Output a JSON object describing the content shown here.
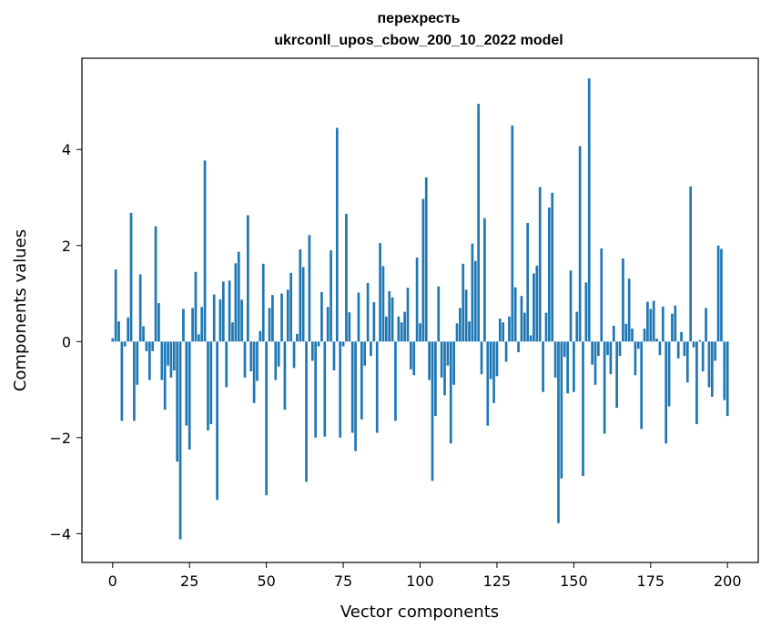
{
  "chart_data": {
    "type": "bar",
    "title_line1": "перехресть",
    "title_line2": "ukrconll_upos_cbow_200_10_2022 model",
    "xlabel": "Vector components",
    "ylabel": "Components values",
    "xlim": [
      -10,
      210
    ],
    "ylim": [
      -4.6,
      5.9
    ],
    "xticks": [
      0,
      25,
      50,
      75,
      100,
      125,
      150,
      175,
      200
    ],
    "yticks": [
      -4,
      -2,
      0,
      2,
      4
    ],
    "ytick_labels": [
      "−4",
      "−2",
      "0",
      "2",
      "4"
    ],
    "bar_color": "#1f77b4",
    "values": [
      0.07,
      1.5,
      0.42,
      -1.65,
      -0.1,
      0.5,
      2.68,
      -1.65,
      -0.9,
      1.4,
      0.32,
      -0.2,
      -0.8,
      -0.2,
      2.4,
      0.8,
      -0.8,
      -1.42,
      -0.5,
      -0.75,
      -0.6,
      -2.5,
      -4.12,
      0.68,
      -1.75,
      -2.25,
      0.7,
      1.45,
      0.15,
      0.72,
      3.77,
      -1.85,
      -1.72,
      0.98,
      -3.3,
      0.88,
      1.25,
      -0.95,
      1.27,
      0.4,
      1.63,
      1.87,
      0.87,
      -0.75,
      2.63,
      -0.62,
      -1.28,
      -0.82,
      0.22,
      1.62,
      -3.2,
      0.7,
      0.97,
      -0.8,
      -0.52,
      1.0,
      -1.42,
      1.08,
      1.43,
      -0.55,
      0.16,
      1.92,
      1.55,
      -2.92,
      2.22,
      -0.4,
      -2.0,
      -0.1,
      1.03,
      -1.98,
      0.72,
      1.9,
      -0.6,
      4.45,
      -2.0,
      -0.1,
      2.66,
      0.61,
      -1.9,
      -2.28,
      1.02,
      -1.62,
      -0.5,
      1.22,
      -0.3,
      0.82,
      -1.9,
      2.05,
      1.57,
      0.52,
      1.05,
      0.92,
      -1.65,
      0.52,
      0.4,
      0.62,
      1.12,
      -0.58,
      -0.7,
      1.75,
      0.38,
      2.97,
      3.42,
      -0.8,
      -2.9,
      -1.55,
      1.15,
      -0.75,
      -1.12,
      -0.5,
      -2.12,
      -0.9,
      0.38,
      0.7,
      1.62,
      1.08,
      0.42,
      2.04,
      1.68,
      4.95,
      -0.68,
      2.57,
      -1.75,
      -0.78,
      -1.28,
      -0.72,
      0.48,
      0.4,
      -0.42,
      0.52,
      4.5,
      1.13,
      -0.22,
      0.95,
      0.6,
      2.47,
      0.13,
      1.42,
      1.58,
      3.22,
      -1.05,
      0.6,
      2.79,
      3.1,
      -0.75,
      -3.78,
      -2.85,
      -0.32,
      -1.08,
      1.48,
      -1.05,
      0.62,
      4.07,
      -2.8,
      1.23,
      5.48,
      -0.48,
      -0.9,
      -0.3,
      1.94,
      -1.92,
      -0.28,
      -0.68,
      0.33,
      -1.38,
      -0.3,
      1.73,
      0.37,
      1.31,
      0.27,
      -0.7,
      -0.15,
      -1.82,
      0.27,
      0.83,
      0.68,
      0.85,
      0.06,
      -0.28,
      0.73,
      -2.12,
      -1.35,
      0.58,
      0.75,
      -0.35,
      0.2,
      -0.3,
      -0.85,
      3.23,
      -0.12,
      -1.72,
      0.03,
      -0.62,
      0.7,
      -0.95,
      -1.15,
      -0.4,
      2.0,
      1.93,
      -1.22,
      -1.55
    ]
  }
}
